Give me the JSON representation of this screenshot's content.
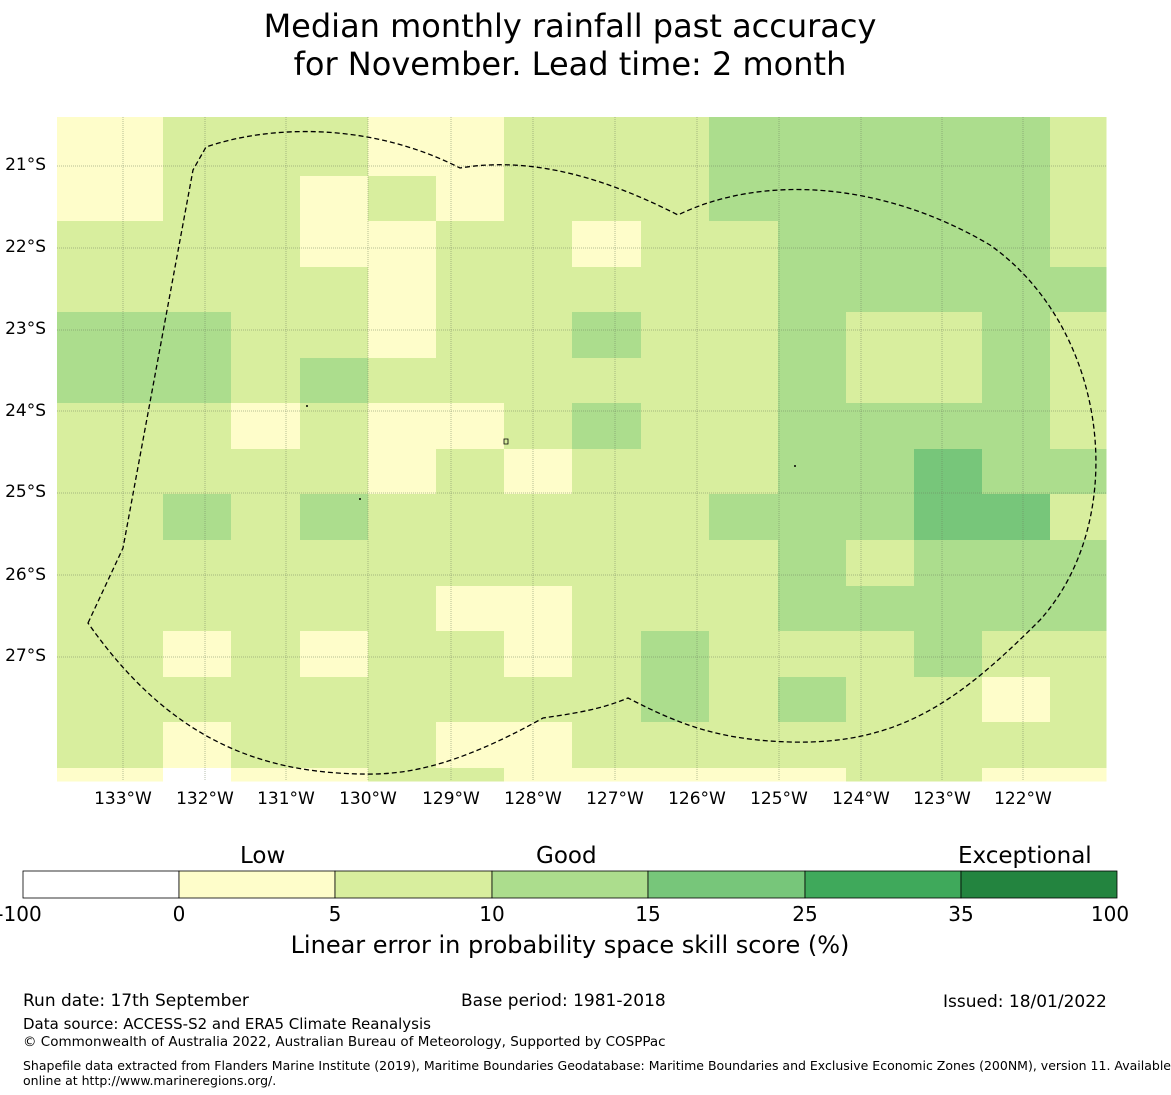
{
  "title": {
    "line1": "Median monthly rainfall past accuracy",
    "line2": "for November. Lead time: 2 month"
  },
  "map": {
    "lat_labels": [
      "21°S",
      "22°S",
      "23°S",
      "24°S",
      "25°S",
      "26°S",
      "27°S"
    ],
    "lon_labels": [
      "133°W",
      "132°W",
      "131°W",
      "130°W",
      "129°W",
      "128°W",
      "127°W",
      "126°W",
      "125°W",
      "124°W",
      "123°W",
      "122°W"
    ],
    "grid_skill_categories": [
      [
        1,
        2,
        2,
        2,
        1,
        1,
        2,
        2,
        2,
        3,
        3,
        3,
        3,
        3,
        2
      ],
      [
        1,
        2,
        2,
        1,
        2,
        1,
        2,
        2,
        2,
        3,
        3,
        3,
        3,
        3,
        2
      ],
      [
        2,
        2,
        2,
        1,
        1,
        2,
        2,
        1,
        2,
        2,
        3,
        3,
        3,
        3,
        2
      ],
      [
        2,
        2,
        2,
        2,
        1,
        2,
        2,
        2,
        2,
        2,
        3,
        3,
        3,
        3,
        3
      ],
      [
        3,
        3,
        2,
        2,
        1,
        2,
        2,
        3,
        2,
        2,
        3,
        2,
        2,
        3,
        2
      ],
      [
        3,
        3,
        2,
        3,
        2,
        2,
        2,
        2,
        2,
        2,
        3,
        2,
        2,
        3,
        2
      ],
      [
        2,
        2,
        1,
        2,
        1,
        1,
        2,
        3,
        2,
        2,
        3,
        3,
        3,
        3,
        2
      ],
      [
        2,
        2,
        2,
        2,
        1,
        2,
        1,
        2,
        2,
        2,
        3,
        3,
        4,
        3,
        3
      ],
      [
        2,
        3,
        2,
        3,
        2,
        2,
        2,
        2,
        2,
        3,
        3,
        3,
        4,
        4,
        2
      ],
      [
        2,
        2,
        2,
        2,
        2,
        2,
        2,
        2,
        2,
        2,
        3,
        2,
        3,
        3,
        3
      ],
      [
        2,
        2,
        2,
        2,
        2,
        1,
        1,
        2,
        2,
        2,
        3,
        3,
        3,
        3,
        3
      ],
      [
        2,
        1,
        2,
        1,
        2,
        2,
        1,
        2,
        3,
        2,
        2,
        2,
        3,
        2,
        2
      ],
      [
        2,
        2,
        2,
        2,
        2,
        2,
        2,
        2,
        3,
        2,
        3,
        2,
        2,
        1,
        2
      ],
      [
        2,
        1,
        2,
        2,
        2,
        1,
        1,
        2,
        2,
        2,
        2,
        2,
        2,
        2,
        2
      ],
      [
        1,
        0,
        1,
        1,
        2,
        2,
        1,
        1,
        1,
        1,
        1,
        2,
        2,
        1,
        1
      ]
    ]
  },
  "colorbar": {
    "categories": [
      "Low",
      "Good",
      "Exceptional"
    ],
    "ticks": [
      "-100",
      "0",
      "5",
      "10",
      "15",
      "25",
      "35",
      "100"
    ],
    "colors": [
      "#ffffff",
      "#fefdca",
      "#d8ee9e",
      "#acdd8d",
      "#77c67a",
      "#3fa95b",
      "#23843f"
    ],
    "label": "Linear error in probability space skill score (%)"
  },
  "footer": {
    "run_date": "Run date: 17th September",
    "base_period": "Base period: 1981-2018",
    "issued": "Issued: 18/01/2022",
    "data_source": "Data source: ACCESS-S2 and ERA5 Climate Reanalysis",
    "copyright": "© Commonwealth of Australia 2022, Australian Bureau of Meteorology, Supported by COSPPac",
    "shapefile_line1": "Shapefile data extracted from Flanders Marine Institute (2019), Maritime Boundaries Geodatabase: Maritime Boundaries and Exclusive Economic Zones (200NM), version 11. Available",
    "shapefile_line2": "online at http://www.marineregions.org/."
  }
}
